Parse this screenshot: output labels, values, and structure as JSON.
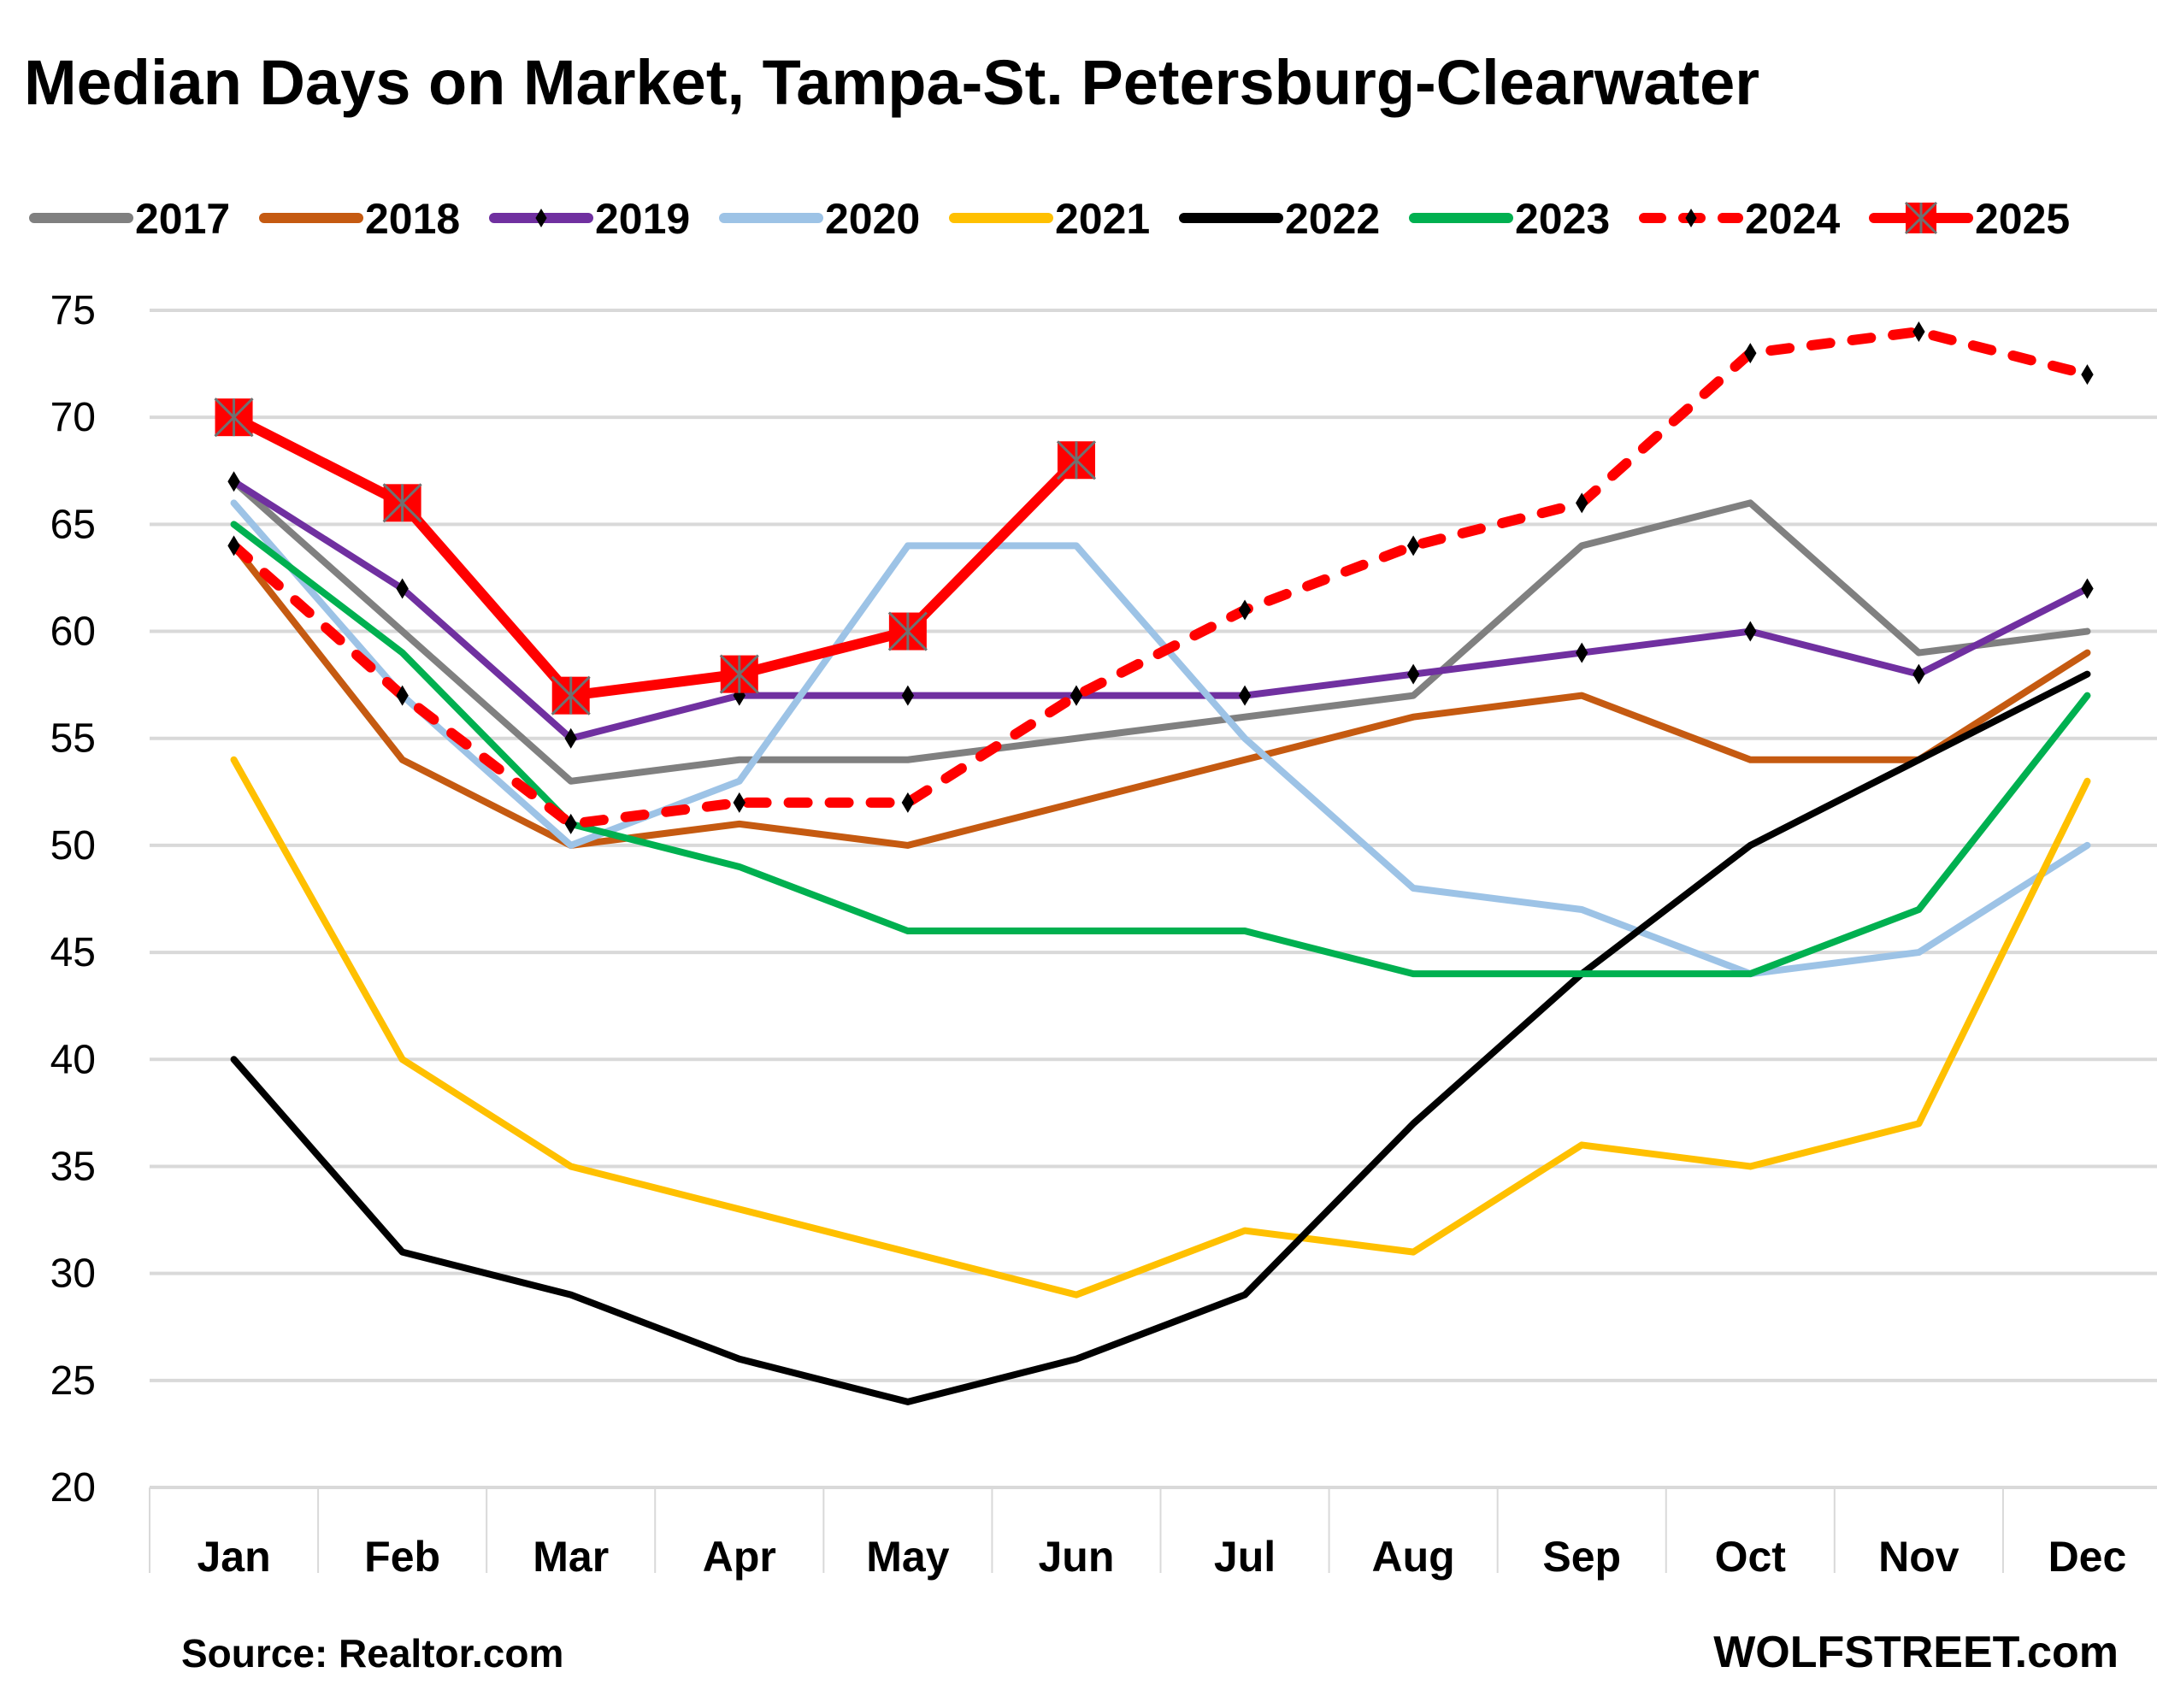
{
  "chart_data": {
    "type": "line",
    "title": "Median Days on Market, Tampa-St. Petersburg-Clearwater",
    "xlabel": "",
    "ylabel": "",
    "categories": [
      "Jan",
      "Feb",
      "Mar",
      "Apr",
      "May",
      "Jun",
      "Jul",
      "Aug",
      "Sep",
      "Oct",
      "Nov",
      "Dec"
    ],
    "ylim": [
      20,
      75
    ],
    "yticks": [
      20,
      25,
      30,
      35,
      40,
      45,
      50,
      55,
      60,
      65,
      70,
      75
    ],
    "ytick_labels": [
      "20",
      "25",
      "30",
      "35",
      "40",
      "45",
      "50",
      "55",
      "60",
      "65",
      "70",
      "75"
    ],
    "grid": true,
    "legend_position": "top",
    "series": [
      {
        "name": "2017",
        "color": "#808080",
        "style": "solid",
        "marker": "none",
        "values": [
          67,
          60,
          53,
          54,
          54,
          55,
          56,
          57,
          64,
          66,
          59,
          60
        ]
      },
      {
        "name": "2018",
        "color": "#C55A11",
        "style": "solid",
        "marker": "none",
        "values": [
          64,
          54,
          50,
          51,
          50,
          52,
          54,
          56,
          57,
          54,
          54,
          59
        ]
      },
      {
        "name": "2019",
        "color": "#7030A0",
        "style": "solid",
        "marker": "diamond",
        "values": [
          67,
          62,
          55,
          57,
          57,
          57,
          57,
          58,
          59,
          60,
          58,
          62
        ]
      },
      {
        "name": "2020",
        "color": "#9DC3E6",
        "style": "solid",
        "marker": "none",
        "values": [
          66,
          57,
          50,
          53,
          64,
          64,
          55,
          48,
          47,
          44,
          45,
          50
        ]
      },
      {
        "name": "2021",
        "color": "#FFC000",
        "style": "solid",
        "marker": "none",
        "values": [
          54,
          40,
          35,
          33,
          31,
          29,
          32,
          31,
          36,
          35,
          37,
          53
        ]
      },
      {
        "name": "2022",
        "color": "#000000",
        "style": "solid",
        "marker": "none",
        "values": [
          40,
          31,
          29,
          26,
          24,
          26,
          29,
          37,
          44,
          50,
          54,
          58
        ]
      },
      {
        "name": "2023",
        "color": "#00B050",
        "style": "solid",
        "marker": "none",
        "values": [
          65,
          59,
          51,
          49,
          46,
          46,
          46,
          44,
          44,
          44,
          47,
          57
        ]
      },
      {
        "name": "2024",
        "color": "#FF0000",
        "style": "dashed",
        "marker": "diamond",
        "values": [
          64,
          57,
          51,
          52,
          52,
          57,
          61,
          64,
          66,
          73,
          74,
          72
        ]
      },
      {
        "name": "2025",
        "color": "#FF0000",
        "style": "solid",
        "marker": "square-x",
        "values": [
          70,
          66,
          57,
          58,
          60,
          68,
          null,
          null,
          null,
          null,
          null,
          null
        ]
      }
    ],
    "source": "Source: Realtor.com",
    "brand": "WOLFSTREET.com"
  }
}
